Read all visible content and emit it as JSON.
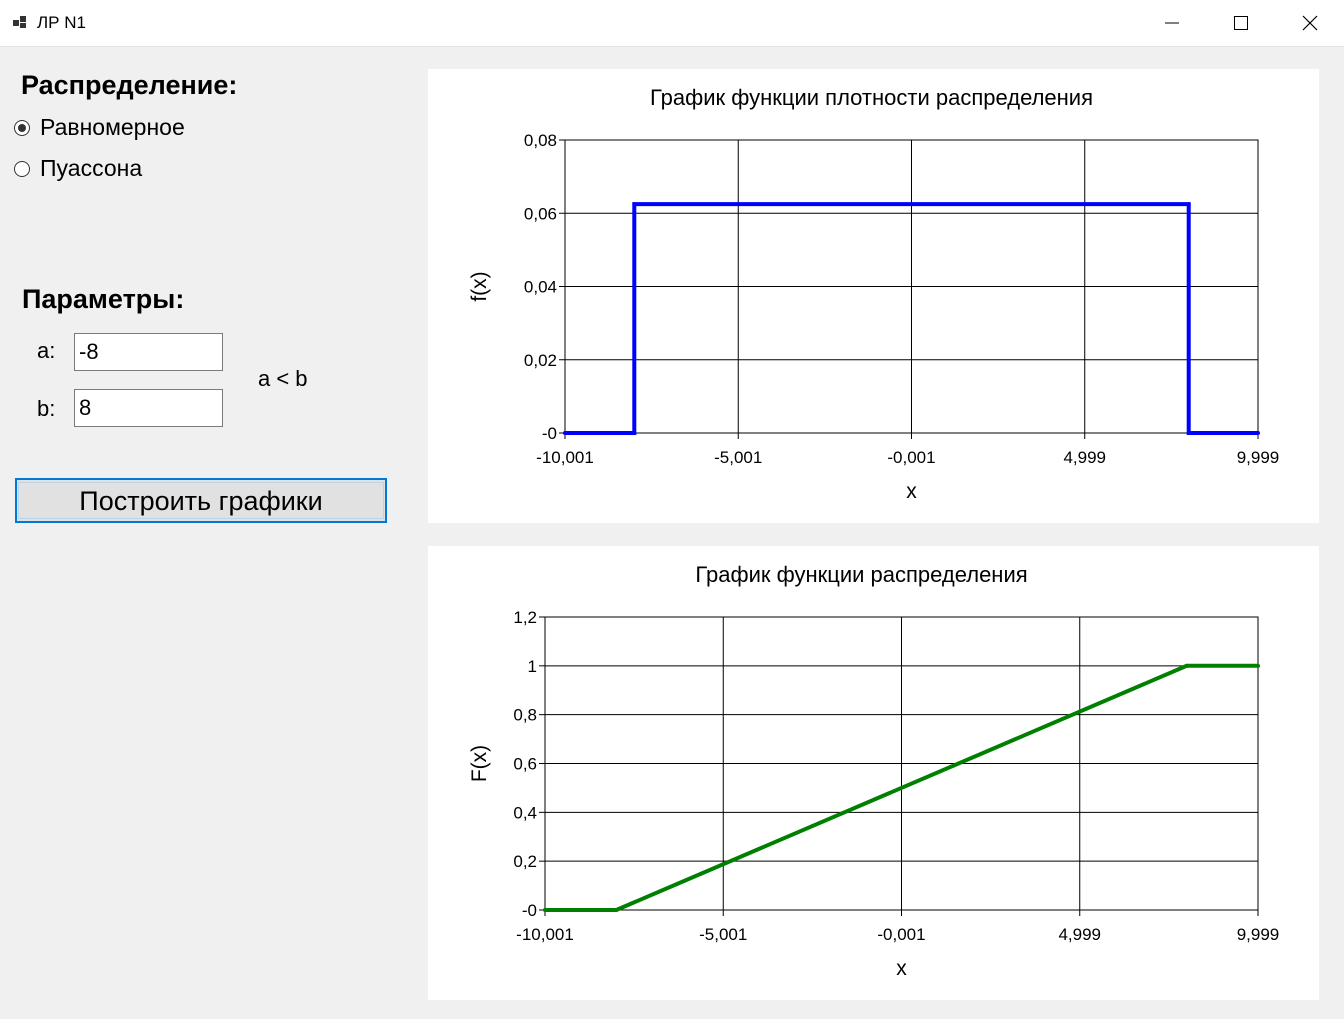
{
  "window": {
    "title": "ЛР N1"
  },
  "distribution": {
    "title": "Распределение:",
    "options": [
      {
        "label": "Равномерное",
        "selected": true
      },
      {
        "label": "Пуассона",
        "selected": false
      }
    ]
  },
  "params": {
    "title": "Параметры:",
    "a_label": "a:",
    "a_value": "-8",
    "b_label": "b:",
    "b_value": "8",
    "hint": "a < b"
  },
  "build_button": {
    "label": "Построить графики"
  },
  "chart_data": [
    {
      "type": "line",
      "title": "График функции плотности распределения",
      "xlabel": "x",
      "ylabel": "f(x)",
      "xlim": [
        -10.001,
        9.999
      ],
      "ylim": [
        0,
        0.08
      ],
      "xticks": [
        "-10,001",
        "-5,001",
        "-0,001",
        "4,999",
        "9,999"
      ],
      "yticks": [
        "-0",
        "0,02",
        "0,04",
        "0,06",
        "0,08"
      ],
      "grid": true,
      "color": "#0000ff",
      "series": [
        {
          "x": [
            -10.001,
            -8,
            -8,
            8,
            8,
            9.999
          ],
          "y": [
            0,
            0,
            0.0625,
            0.0625,
            0,
            0
          ]
        }
      ]
    },
    {
      "type": "line",
      "title": "График функции распределения",
      "xlabel": "x",
      "ylabel": "F(x)",
      "xlim": [
        -10.001,
        9.999
      ],
      "ylim": [
        0,
        1.2
      ],
      "xticks": [
        "-10,001",
        "-5,001",
        "-0,001",
        "4,999",
        "9,999"
      ],
      "yticks": [
        "-0",
        "0,2",
        "0,4",
        "0,6",
        "0,8",
        "1",
        "1,2"
      ],
      "grid": true,
      "color": "#008000",
      "series": [
        {
          "x": [
            -10.001,
            -8,
            8,
            9.999
          ],
          "y": [
            0,
            0,
            1,
            1
          ]
        }
      ]
    }
  ]
}
